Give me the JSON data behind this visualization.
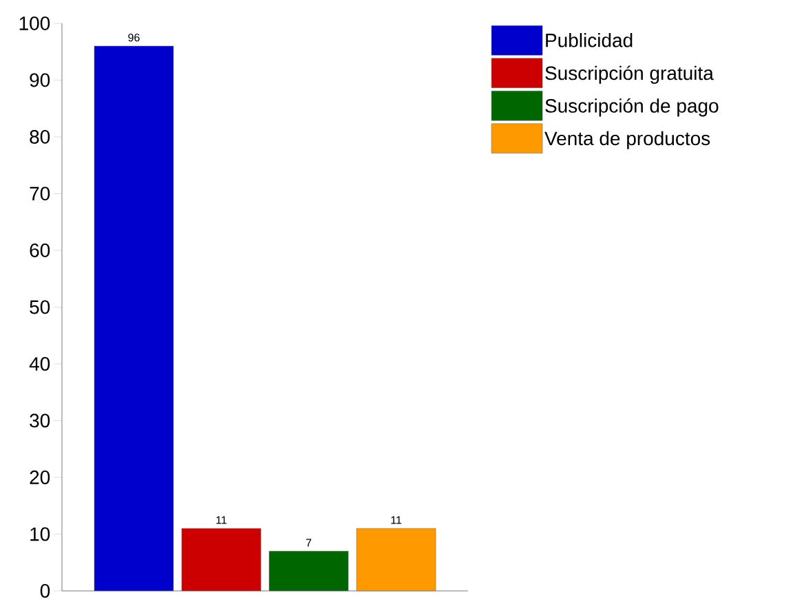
{
  "chart_data": {
    "type": "bar",
    "categories": [
      null
    ],
    "series": [
      {
        "name": "Publicidad",
        "color": "#0000cc",
        "values": [
          96
        ]
      },
      {
        "name": "Suscripción gratuita",
        "color": "#cc0000",
        "values": [
          11
        ]
      },
      {
        "name": "Suscripción de pago",
        "color": "#006600",
        "values": [
          7
        ]
      },
      {
        "name": "Venta de productos",
        "color": "#ff9900",
        "values": [
          11
        ]
      }
    ],
    "ylim": [
      0,
      100
    ],
    "yticks": [
      0,
      10,
      20,
      30,
      40,
      50,
      60,
      70,
      80,
      90,
      100
    ],
    "data_labels": true,
    "legend": "top right",
    "grid": false
  }
}
